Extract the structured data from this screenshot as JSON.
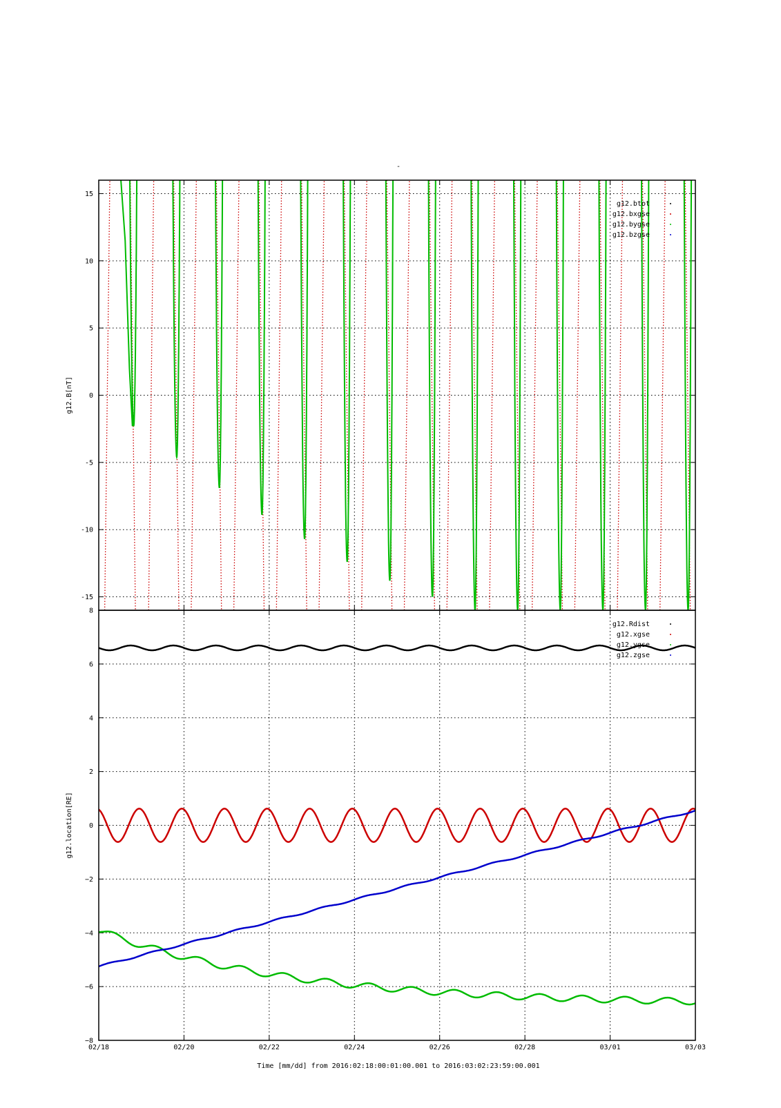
{
  "page": {
    "title_mark": "-"
  },
  "chart_data": [
    {
      "type": "line",
      "ylabel": "g12.B[nT]",
      "ylim": [
        -16,
        16
      ],
      "yticks": [
        15,
        10,
        5,
        0,
        -5,
        -10,
        -15
      ],
      "ytick_labels": [
        "15",
        "10",
        "5",
        "0",
        "-5",
        "-10",
        "-15"
      ],
      "x_range_days": [
        0,
        14
      ],
      "grid": true,
      "legend_placement": "top-right",
      "series": [
        {
          "name": "g12.btot",
          "color": "#000000",
          "style": "off-scale (above range)",
          "values": []
        },
        {
          "name": "g12.bxgse",
          "color": "#cc0000",
          "style": "dotted, steep off-scale oscillation",
          "crossing_times_days": [
            0.2,
            0.8,
            1.23,
            1.82,
            2.23,
            2.82,
            3.23,
            3.82,
            4.23,
            4.82,
            5.23,
            5.82,
            6.23,
            6.82,
            7.23,
            7.82,
            8.23,
            8.82,
            9.23,
            9.82,
            10.23,
            10.82,
            11.23,
            11.82,
            12.23,
            12.82,
            13.23,
            13.82
          ]
        },
        {
          "name": "g12.bygse",
          "color": "#00bb00",
          "style": "solid daily minima",
          "minima_time_days": [
            0.82,
            1.83,
            2.83,
            3.83,
            4.83,
            5.83,
            6.83,
            7.83,
            8.83,
            9.83,
            10.83,
            11.83,
            12.83,
            13.83
          ],
          "minima_values": [
            -2.3,
            -4.6,
            -6.9,
            -8.9,
            -10.7,
            -12.4,
            -13.8,
            -15.0,
            -16,
            -16,
            -16,
            -16,
            -16,
            -16
          ]
        },
        {
          "name": "g12.bzgse",
          "color": "#0000cc",
          "style": "off-scale (below range)",
          "values": []
        }
      ]
    },
    {
      "type": "line",
      "ylabel": "g12.location[RE]",
      "ylim": [
        -8,
        8
      ],
      "yticks": [
        8,
        6,
        4,
        2,
        0,
        -2,
        -4,
        -6,
        -8
      ],
      "ytick_labels": [
        "8",
        "6",
        "4",
        "2",
        "0",
        "−2",
        "−4",
        "−6",
        "−8"
      ],
      "x_range_days": [
        0,
        14
      ],
      "xtick_days": [
        0,
        2,
        4,
        6,
        8,
        10,
        12,
        14
      ],
      "xtick_labels": [
        "02/18",
        "02/20",
        "02/22",
        "02/24",
        "02/26",
        "02/28",
        "03/01",
        "03/03"
      ],
      "xlabel": "Time [mm/dd]  from 2016:02:18:00:01:00.001  to  2016:03:02:23:59:00.001",
      "grid": true,
      "legend_placement": "top-right",
      "series": [
        {
          "name": "g12.Rdist",
          "color": "#000000",
          "mean": 6.6,
          "amplitude": 0.09,
          "period_days": 1,
          "phase": 0.5
        },
        {
          "name": "g12.xgse",
          "color": "#cc0000",
          "mean": 0.0,
          "amplitude": 0.62,
          "period_days": 1,
          "phase": 0.7
        },
        {
          "name": "g12.ygse",
          "color": "#00bb00",
          "start": -3.9,
          "end": -6.55,
          "ripple": 0.12,
          "period_days": 1
        },
        {
          "name": "g12.zgse",
          "color": "#0000cc",
          "start": -5.25,
          "end": 0.55,
          "ripple": 0.03,
          "period_days": 1
        }
      ]
    }
  ]
}
